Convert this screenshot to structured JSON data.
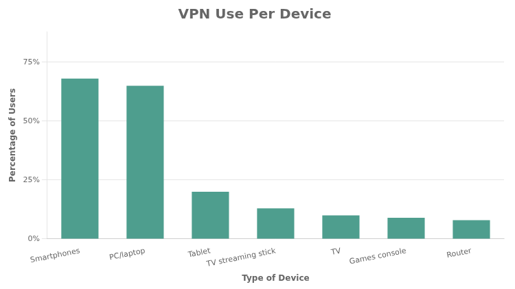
{
  "chart_data": {
    "type": "bar",
    "title": "VPN Use Per Device",
    "xlabel": "Type of Device",
    "ylabel": "Percentage of Users",
    "categories": [
      "Smartphones",
      "PC/laptop",
      "Tablet",
      "TV streaming stick",
      "TV",
      "Games console",
      "Router"
    ],
    "values": [
      68,
      65,
      20,
      13,
      10,
      9,
      8
    ],
    "color": "#4e9e8e",
    "ylim": [
      0,
      88
    ],
    "yticks": [
      {
        "value": 0,
        "label": "0%"
      },
      {
        "value": 25,
        "label": "25%"
      },
      {
        "value": 50,
        "label": "50%"
      },
      {
        "value": 75,
        "label": "75%"
      }
    ],
    "grid": true
  }
}
